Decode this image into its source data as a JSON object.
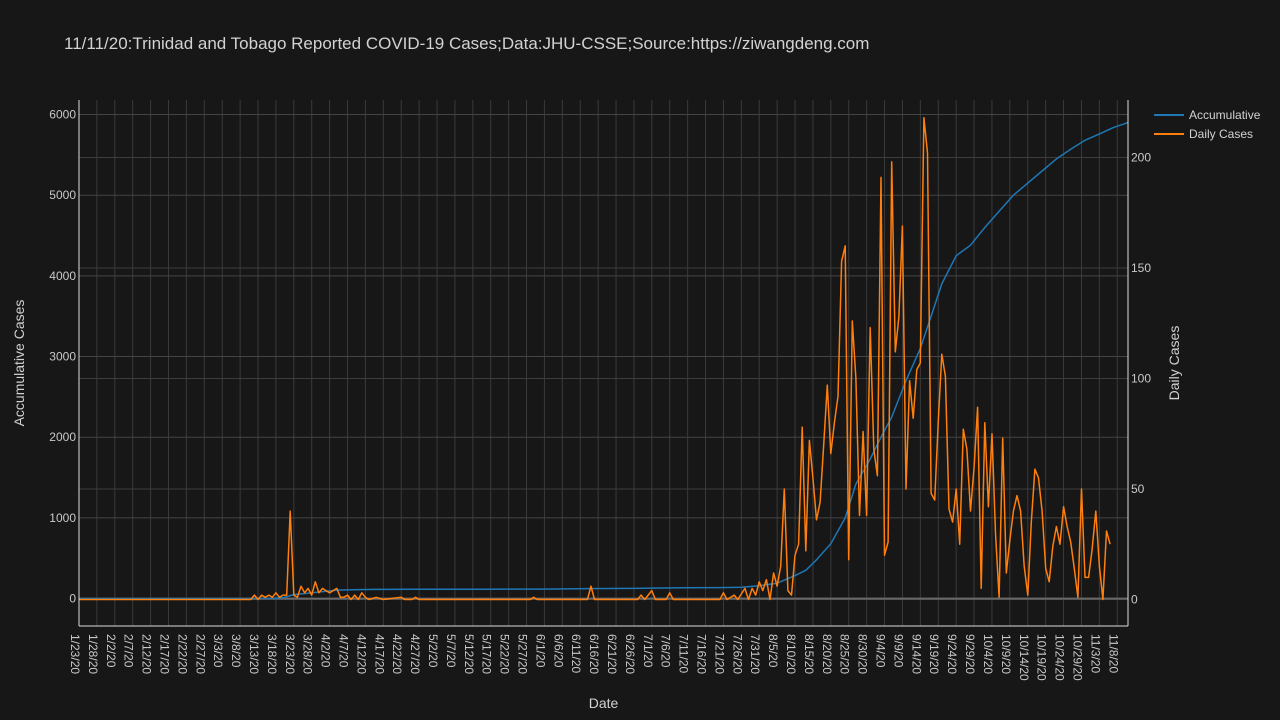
{
  "chart_data": {
    "type": "line",
    "title": "11/11/20:Trinidad and Tobago Reported COVID-19 Cases;Data:JHU-CSSE;Source:https://ziwangdeng.com",
    "xlabel": "Date",
    "ylabel": "Accumulative Cases",
    "y2label": "Daily Cases",
    "ylim": [
      -340,
      6180
    ],
    "y2lim": [
      -12,
      226
    ],
    "yticks": [
      0,
      1000,
      2000,
      3000,
      4000,
      5000,
      6000
    ],
    "y2ticks": [
      0,
      50,
      100,
      150,
      200
    ],
    "grid": true,
    "legend_position": "top-right",
    "x_range_dates": [
      "2020-01-23",
      "2020-11-11"
    ],
    "x_tick_labels": [
      "1/23/20",
      "1/28/20",
      "2/2/20",
      "2/7/20",
      "2/12/20",
      "2/17/20",
      "2/22/20",
      "2/27/20",
      "3/3/20",
      "3/8/20",
      "3/13/20",
      "3/18/20",
      "3/23/20",
      "3/28/20",
      "4/2/20",
      "4/7/20",
      "4/12/20",
      "4/17/20",
      "4/22/20",
      "4/27/20",
      "5/2/20",
      "5/7/20",
      "5/12/20",
      "5/17/20",
      "5/22/20",
      "5/27/20",
      "6/1/20",
      "6/6/20",
      "6/11/20",
      "6/16/20",
      "6/21/20",
      "6/26/20",
      "7/1/20",
      "7/6/20",
      "7/11/20",
      "7/16/20",
      "7/21/20",
      "7/26/20",
      "7/31/20",
      "8/5/20",
      "8/10/20",
      "8/15/20",
      "8/20/20",
      "8/25/20",
      "8/30/20",
      "9/4/20",
      "9/9/20",
      "9/14/20",
      "9/19/20",
      "9/24/20",
      "9/29/20",
      "10/4/20",
      "10/9/20",
      "10/14/20",
      "10/19/20",
      "10/24/20",
      "10/29/20",
      "11/3/20",
      "11/8/20"
    ],
    "series": [
      {
        "name": "Accumulative",
        "color": "#1f77b4",
        "axis": "left",
        "points": [
          [
            "1/23/20",
            0
          ],
          [
            "3/11/20",
            0
          ],
          [
            "3/13/20",
            2
          ],
          [
            "3/17/20",
            5
          ],
          [
            "3/20/20",
            9
          ],
          [
            "3/23/20",
            50
          ],
          [
            "3/27/20",
            66
          ],
          [
            "3/31/20",
            87
          ],
          [
            "4/4/20",
            105
          ],
          [
            "4/8/20",
            109
          ],
          [
            "4/15/20",
            114
          ],
          [
            "4/25/20",
            115
          ],
          [
            "5/15/20",
            116
          ],
          [
            "6/1/20",
            117
          ],
          [
            "6/13/20",
            123
          ],
          [
            "6/25/20",
            126
          ],
          [
            "7/1/20",
            130
          ],
          [
            "7/10/20",
            133
          ],
          [
            "7/20/20",
            136
          ],
          [
            "7/26/20",
            140
          ],
          [
            "7/31/20",
            160
          ],
          [
            "8/5/20",
            190
          ],
          [
            "8/10/20",
            285
          ],
          [
            "8/13/20",
            350
          ],
          [
            "8/16/20",
            480
          ],
          [
            "8/20/20",
            680
          ],
          [
            "8/24/20",
            1000
          ],
          [
            "8/27/20",
            1420
          ],
          [
            "8/31/20",
            1730
          ],
          [
            "9/3/20",
            2000
          ],
          [
            "9/6/20",
            2250
          ],
          [
            "9/10/20",
            2700
          ],
          [
            "9/14/20",
            3100
          ],
          [
            "9/17/20",
            3500
          ],
          [
            "9/20/20",
            3900
          ],
          [
            "9/24/20",
            4250
          ],
          [
            "9/28/20",
            4380
          ],
          [
            "10/2/20",
            4600
          ],
          [
            "10/6/20",
            4800
          ],
          [
            "10/10/20",
            5000
          ],
          [
            "10/14/20",
            5150
          ],
          [
            "10/18/20",
            5300
          ],
          [
            "10/22/20",
            5450
          ],
          [
            "10/26/20",
            5570
          ],
          [
            "10/30/20",
            5680
          ],
          [
            "11/3/20",
            5760
          ],
          [
            "11/7/20",
            5840
          ],
          [
            "11/11/20",
            5900
          ]
        ]
      },
      {
        "name": "Daily Cases",
        "color": "#ff7f0e",
        "axis": "right",
        "points": [
          [
            "1/23/20",
            0
          ],
          [
            "3/11/20",
            0
          ],
          [
            "3/12/20",
            2
          ],
          [
            "3/13/20",
            0
          ],
          [
            "3/14/20",
            2
          ],
          [
            "3/15/20",
            1
          ],
          [
            "3/16/20",
            2
          ],
          [
            "3/17/20",
            1
          ],
          [
            "3/18/20",
            3
          ],
          [
            "3/19/20",
            1
          ],
          [
            "3/20/20",
            2
          ],
          [
            "3/21/20",
            2
          ],
          [
            "3/22/20",
            40
          ],
          [
            "3/23/20",
            2
          ],
          [
            "3/24/20",
            1
          ],
          [
            "3/25/20",
            6
          ],
          [
            "3/26/20",
            3
          ],
          [
            "3/27/20",
            5
          ],
          [
            "3/28/20",
            2
          ],
          [
            "3/29/20",
            8
          ],
          [
            "3/30/20",
            3
          ],
          [
            "3/31/20",
            5
          ],
          [
            "4/1/20",
            4
          ],
          [
            "4/2/20",
            3
          ],
          [
            "4/3/20",
            4
          ],
          [
            "4/4/20",
            5
          ],
          [
            "4/5/20",
            1
          ],
          [
            "4/6/20",
            1
          ],
          [
            "4/7/20",
            2
          ],
          [
            "4/8/20",
            0
          ],
          [
            "4/9/20",
            2
          ],
          [
            "4/10/20",
            0
          ],
          [
            "4/11/20",
            3
          ],
          [
            "4/12/20",
            1
          ],
          [
            "4/13/20",
            0
          ],
          [
            "4/15/20",
            1
          ],
          [
            "4/17/20",
            0
          ],
          [
            "4/22/20",
            1
          ],
          [
            "4/23/20",
            0
          ],
          [
            "4/25/20",
            0
          ],
          [
            "4/26/20",
            1
          ],
          [
            "4/27/20",
            0
          ],
          [
            "5/28/20",
            0
          ],
          [
            "5/29/20",
            1
          ],
          [
            "5/30/20",
            0
          ],
          [
            "6/13/20",
            0
          ],
          [
            "6/14/20",
            6
          ],
          [
            "6/15/20",
            0
          ],
          [
            "6/27/20",
            0
          ],
          [
            "6/28/20",
            2
          ],
          [
            "6/29/20",
            0
          ],
          [
            "7/1/20",
            4
          ],
          [
            "7/2/20",
            0
          ],
          [
            "7/5/20",
            0
          ],
          [
            "7/6/20",
            3
          ],
          [
            "7/7/20",
            0
          ],
          [
            "7/20/20",
            0
          ],
          [
            "7/21/20",
            3
          ],
          [
            "7/22/20",
            0
          ],
          [
            "7/24/20",
            2
          ],
          [
            "7/25/20",
            0
          ],
          [
            "7/27/20",
            5
          ],
          [
            "7/28/20",
            0
          ],
          [
            "7/29/20",
            5
          ],
          [
            "7/30/20",
            2
          ],
          [
            "7/31/20",
            8
          ],
          [
            "8/1/20",
            4
          ],
          [
            "8/2/20",
            9
          ],
          [
            "8/3/20",
            0
          ],
          [
            "8/4/20",
            12
          ],
          [
            "8/5/20",
            6
          ],
          [
            "8/6/20",
            15
          ],
          [
            "8/7/20",
            50
          ],
          [
            "8/8/20",
            4
          ],
          [
            "8/9/20",
            2
          ],
          [
            "8/10/20",
            20
          ],
          [
            "8/11/20",
            25
          ],
          [
            "8/12/20",
            78
          ],
          [
            "8/13/20",
            22
          ],
          [
            "8/14/20",
            72
          ],
          [
            "8/15/20",
            55
          ],
          [
            "8/16/20",
            36
          ],
          [
            "8/17/20",
            44
          ],
          [
            "8/18/20",
            70
          ],
          [
            "8/19/20",
            97
          ],
          [
            "8/20/20",
            66
          ],
          [
            "8/21/20",
            80
          ],
          [
            "8/22/20",
            92
          ],
          [
            "8/23/20",
            153
          ],
          [
            "8/24/20",
            160
          ],
          [
            "8/25/20",
            18
          ],
          [
            "8/26/20",
            126
          ],
          [
            "8/27/20",
            100
          ],
          [
            "8/28/20",
            38
          ],
          [
            "8/29/20",
            76
          ],
          [
            "8/30/20",
            38
          ],
          [
            "8/31/20",
            123
          ],
          [
            "9/1/20",
            68
          ],
          [
            "9/2/20",
            56
          ],
          [
            "9/3/20",
            191
          ],
          [
            "9/4/20",
            20
          ],
          [
            "9/5/20",
            26
          ],
          [
            "9/6/20",
            198
          ],
          [
            "9/7/20",
            112
          ],
          [
            "9/8/20",
            128
          ],
          [
            "9/9/20",
            169
          ],
          [
            "9/10/20",
            50
          ],
          [
            "9/11/20",
            99
          ],
          [
            "9/12/20",
            82
          ],
          [
            "9/13/20",
            104
          ],
          [
            "9/14/20",
            107
          ],
          [
            "9/15/20",
            218
          ],
          [
            "9/16/20",
            202
          ],
          [
            "9/17/20",
            48
          ],
          [
            "9/18/20",
            45
          ],
          [
            "9/19/20",
            80
          ],
          [
            "9/20/20",
            111
          ],
          [
            "9/21/20",
            101
          ],
          [
            "9/22/20",
            41
          ],
          [
            "9/23/20",
            35
          ],
          [
            "9/24/20",
            50
          ],
          [
            "9/25/20",
            25
          ],
          [
            "9/26/20",
            77
          ],
          [
            "9/27/20",
            68
          ],
          [
            "9/28/20",
            40
          ],
          [
            "9/29/20",
            60
          ],
          [
            "9/30/20",
            87
          ],
          [
            "10/1/20",
            5
          ],
          [
            "10/2/20",
            80
          ],
          [
            "10/3/20",
            42
          ],
          [
            "10/4/20",
            75
          ],
          [
            "10/5/20",
            30
          ],
          [
            "10/6/20",
            1
          ],
          [
            "10/7/20",
            73
          ],
          [
            "10/8/20",
            12
          ],
          [
            "10/9/20",
            27
          ],
          [
            "10/10/20",
            40
          ],
          [
            "10/11/20",
            47
          ],
          [
            "10/12/20",
            40
          ],
          [
            "10/13/20",
            15
          ],
          [
            "10/14/20",
            2
          ],
          [
            "10/15/20",
            35
          ],
          [
            "10/16/20",
            59
          ],
          [
            "10/17/20",
            55
          ],
          [
            "10/18/20",
            40
          ],
          [
            "10/19/20",
            14
          ],
          [
            "10/20/20",
            8
          ],
          [
            "10/21/20",
            24
          ],
          [
            "10/22/20",
            33
          ],
          [
            "10/23/20",
            25
          ],
          [
            "10/24/20",
            42
          ],
          [
            "10/25/20",
            33
          ],
          [
            "10/26/20",
            26
          ],
          [
            "10/27/20",
            14
          ],
          [
            "10/28/20",
            1
          ],
          [
            "10/29/20",
            50
          ],
          [
            "10/30/20",
            10
          ],
          [
            "10/31/20",
            10
          ],
          [
            "11/1/20",
            23
          ],
          [
            "11/2/20",
            40
          ],
          [
            "11/3/20",
            15
          ],
          [
            "11/4/20",
            0
          ],
          [
            "11/5/20",
            31
          ],
          [
            "11/6/20",
            25
          ]
        ]
      }
    ]
  }
}
